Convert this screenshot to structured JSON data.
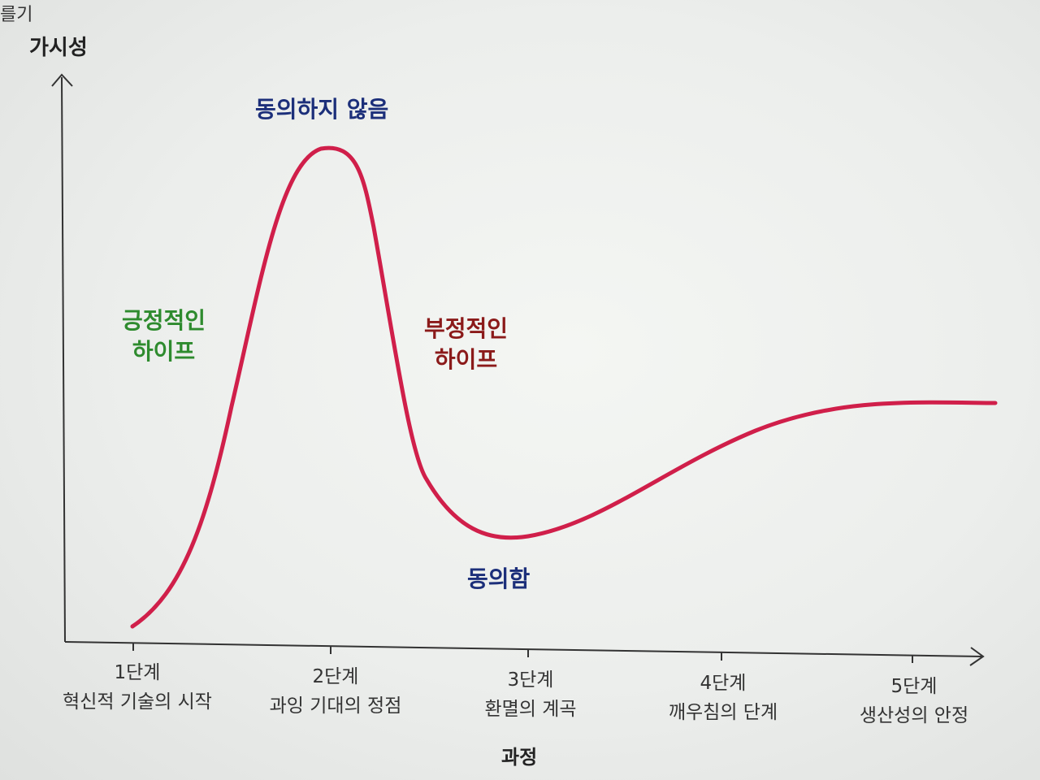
{
  "top_corner_text": "를기",
  "y_axis_label": "가시성",
  "x_axis_label": "과정",
  "annotations": {
    "peak": {
      "text": "동의하지 않음",
      "color": "#1c2f7a"
    },
    "trough": {
      "text": "동의함",
      "color": "#1c2f7a"
    },
    "positive_hype": {
      "line1": "긍정적인",
      "line2": "하이프",
      "color": "#2e8b2e"
    },
    "negative_hype": {
      "line1": "부정적인",
      "line2": "하이프",
      "color": "#8b1a1a"
    }
  },
  "stages": [
    {
      "number": "1단계",
      "name": "혁신적 기술의 시작"
    },
    {
      "number": "2단계",
      "name": "과잉 기대의 정점"
    },
    {
      "number": "3단계",
      "name": "환멸의 계곡"
    },
    {
      "number": "4단계",
      "name": "깨우침의 단계"
    },
    {
      "number": "5단계",
      "name": "생산성의 안정"
    }
  ],
  "curve_color": "#d01f4a",
  "axis_color": "#333333"
}
